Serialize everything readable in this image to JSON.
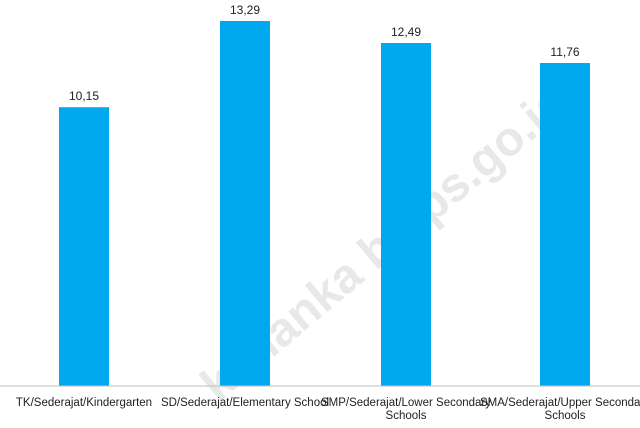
{
  "watermark": "kananka b.bps.go.id",
  "colors": {
    "bar": "#00A9EE",
    "axis": "#BFBFBF",
    "text": "#222222",
    "watermark": "#E8E8E8"
  },
  "chart_data": {
    "type": "bar",
    "categories": [
      "TK/Sederajat/Kindergarten",
      "SD/Sederajat/Elementary School",
      "SMP/Sederajat/Lower Secondary Schools",
      "SMA/Sederajat/Upper Secondary Schools"
    ],
    "category_lines": [
      [
        "TK/Sederajat/Kindergarten"
      ],
      [
        "SD/Sederajat/Elementary School"
      ],
      [
        "SMP/Sederajat/Lower Secondary",
        "Schools"
      ],
      [
        "SMA/Sederajat/Upper Secondary",
        "Schools"
      ]
    ],
    "values": [
      10.15,
      13.29,
      12.49,
      11.76
    ],
    "value_labels": [
      "10,15",
      "13,29",
      "12,49",
      "11,76"
    ],
    "ylim": [
      0,
      13.29
    ],
    "grid": false,
    "legend": "none"
  }
}
